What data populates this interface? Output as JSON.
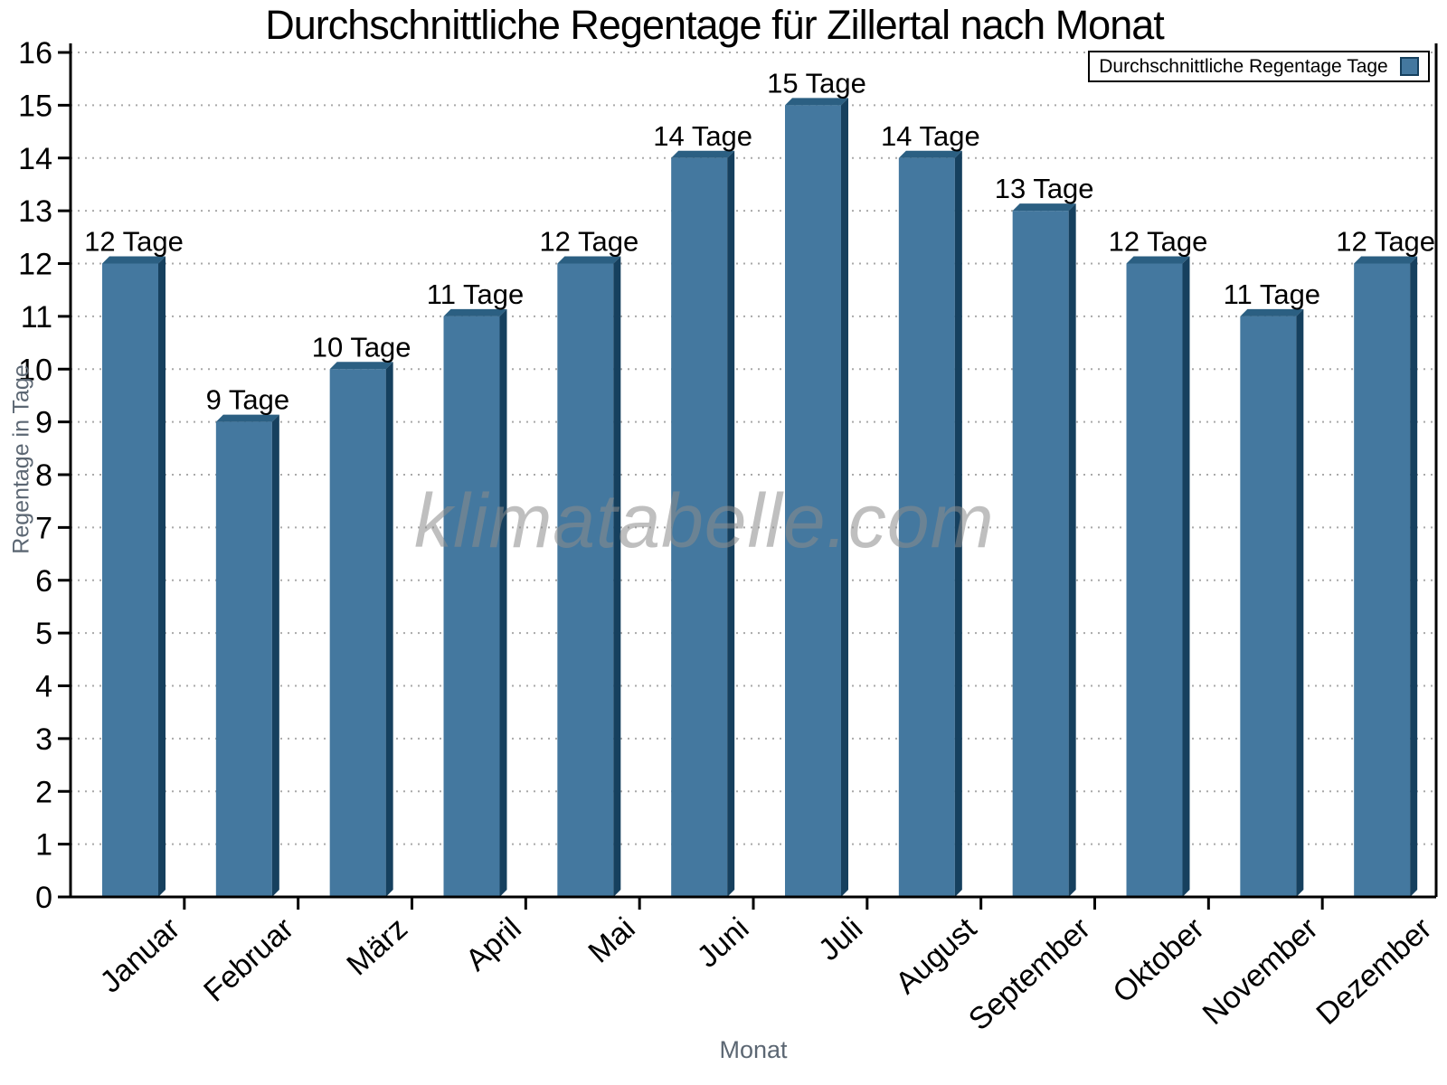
{
  "watermark": "klimatabelle.com",
  "chart_data": {
    "type": "bar",
    "title": "Durchschnittliche Regentage für Zillertal nach Monat",
    "categories": [
      "Januar",
      "Februar",
      "März",
      "April",
      "Mai",
      "Juni",
      "Juli",
      "August",
      "September",
      "Oktober",
      "November",
      "Dezember"
    ],
    "values": [
      12,
      9,
      10,
      11,
      12,
      14,
      15,
      14,
      13,
      12,
      11,
      12
    ],
    "value_suffix": " Tage",
    "xlabel": "Monat",
    "ylabel": "Regentage in Tage",
    "ylim": [
      0,
      16
    ],
    "ytick_step": 1,
    "grid": "horizontal-dotted",
    "legend_label": "Durchschnittliche Regentage Tage",
    "legend_position": "top-right",
    "colors": {
      "bar_face": "#44789F",
      "bar_top": "#2B5F82",
      "bar_side": "#16405E",
      "axis": "#000000",
      "grid": "#A9A9A9",
      "axis_title": "#5C6773",
      "watermark": "#8C8C8C"
    }
  }
}
